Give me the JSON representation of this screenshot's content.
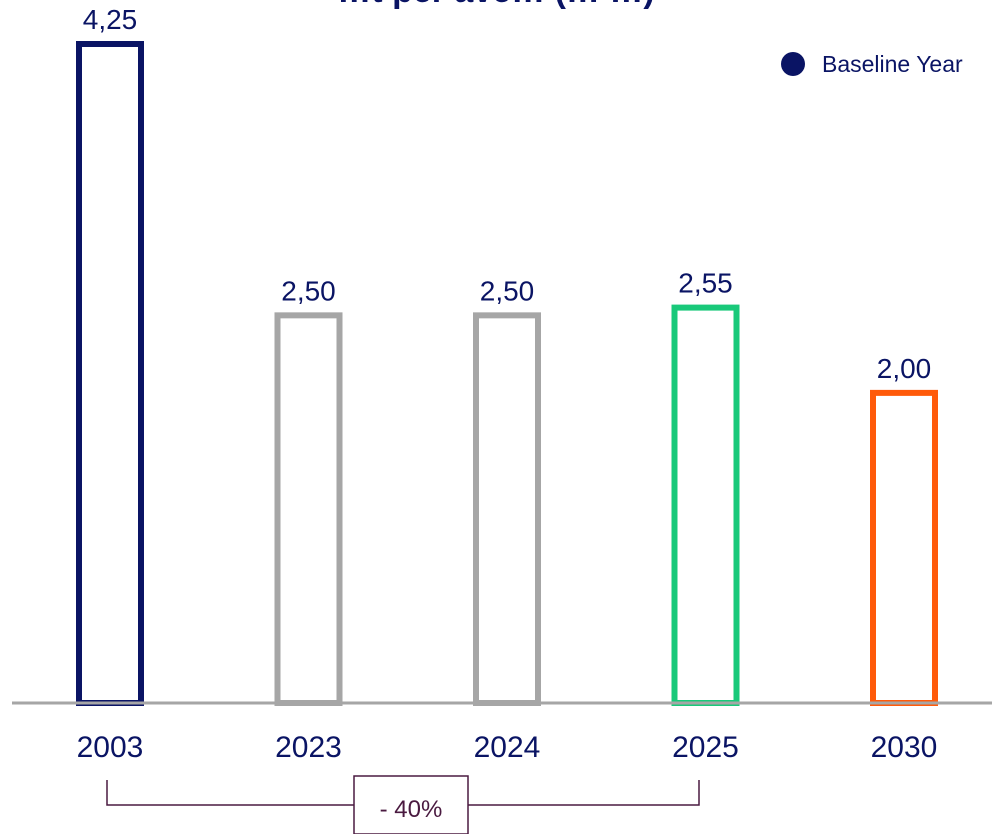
{
  "chart_data": {
    "type": "bar",
    "title": "…t per ave… (… …)",
    "categories": [
      "2003",
      "2023",
      "2024",
      "2025",
      "2030"
    ],
    "values": [
      4.25,
      2.5,
      2.5,
      2.55,
      2.0
    ],
    "value_labels": [
      "4,25",
      "2,50",
      "2,50",
      "2,55",
      "2,00"
    ],
    "bar_colors": [
      "#0a1464",
      "#a6a6a6",
      "#a6a6a6",
      "#19c97a",
      "#ff5a0a"
    ],
    "ylim": [
      0,
      4.25
    ],
    "grid": false,
    "legend": {
      "position": "top-right",
      "entries": [
        {
          "label": "Baseline Year",
          "color": "#0a1464"
        }
      ]
    },
    "annotation": {
      "text": "- 40%",
      "from_category": "2003",
      "to_category": "2025"
    }
  }
}
